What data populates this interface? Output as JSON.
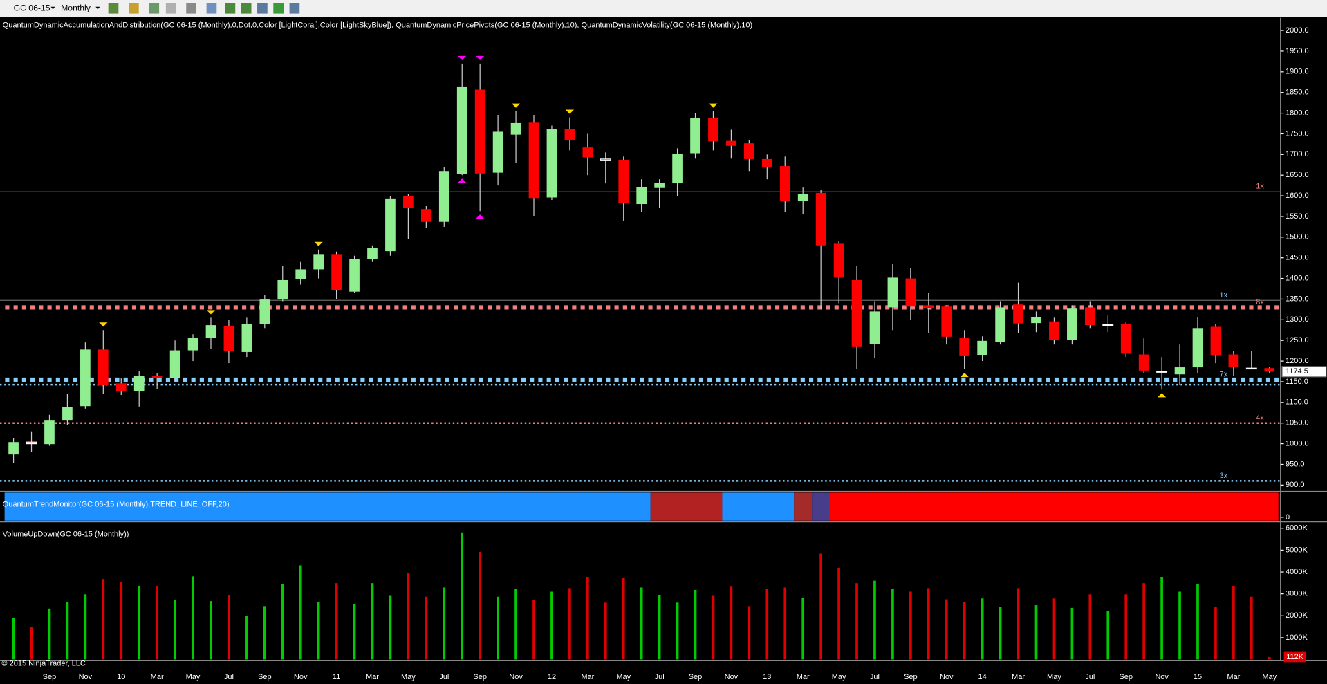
{
  "toolbar": {
    "instrument": "GC 06-15",
    "period": "Monthly"
  },
  "copyright": "© 2015 NinjaTrader, LLC",
  "chart_data": [
    {
      "type": "candlestick",
      "title": "QuantumDynamicAccumulationAndDistribution(GC 06-15 (Monthly),0,Dot,0,Color [LightCoral],Color [LightSkyBlue]), QuantumDynamicPricePivots(GC 06-15 (Monthly),10), QuantumDynamicVolatility(GC 06-15 (Monthly),10)",
      "open": [
        974,
        1004,
        999,
        1056,
        1091,
        1228,
        1146,
        1128,
        1165,
        1160,
        1226,
        1257,
        1285,
        1222,
        1290,
        1349,
        1398,
        1422,
        1459,
        1368,
        1447,
        1466,
        1600,
        1568,
        1537,
        1652,
        1857,
        1656,
        1748,
        1777,
        1596,
        1762,
        1717,
        1689,
        1687,
        1580,
        1619,
        1631,
        1703,
        1789,
        1733,
        1727,
        1689,
        1672,
        1588,
        1607,
        1484,
        1396,
        1242,
        1330,
        1400,
        1335,
        1332,
        1257,
        1214,
        1247,
        1337,
        1292,
        1296,
        1252,
        1330,
        1286,
        1289,
        1216,
        1174,
        1168,
        1185,
        1283,
        1216,
        1183,
        1183
      ],
      "high": [
        1013,
        1030,
        1070,
        1120,
        1245,
        1275,
        1160,
        1175,
        1170,
        1250,
        1265,
        1305,
        1300,
        1305,
        1360,
        1430,
        1440,
        1470,
        1465,
        1455,
        1480,
        1600,
        1605,
        1575,
        1670,
        1920,
        1920,
        1795,
        1805,
        1795,
        1770,
        1790,
        1750,
        1705,
        1695,
        1640,
        1640,
        1715,
        1800,
        1805,
        1760,
        1735,
        1700,
        1695,
        1620,
        1615,
        1490,
        1430,
        1345,
        1435,
        1425,
        1365,
        1335,
        1275,
        1260,
        1345,
        1390,
        1320,
        1305,
        1335,
        1345,
        1310,
        1295,
        1255,
        1210,
        1240,
        1307,
        1290,
        1225,
        1225,
        1185
      ],
      "low": [
        953,
        980,
        995,
        1045,
        1085,
        1120,
        1118,
        1090,
        1132,
        1150,
        1200,
        1230,
        1195,
        1210,
        1280,
        1345,
        1385,
        1400,
        1350,
        1365,
        1440,
        1455,
        1495,
        1522,
        1525,
        1650,
        1563,
        1625,
        1680,
        1550,
        1590,
        1710,
        1650,
        1630,
        1540,
        1560,
        1570,
        1600,
        1690,
        1710,
        1690,
        1660,
        1640,
        1560,
        1555,
        1325,
        1340,
        1180,
        1208,
        1275,
        1300,
        1268,
        1240,
        1180,
        1200,
        1240,
        1268,
        1270,
        1240,
        1240,
        1280,
        1270,
        1210,
        1170,
        1131,
        1143,
        1170,
        1195,
        1165,
        1180,
        1170
      ],
      "close": [
        1004,
        1000,
        1056,
        1089,
        1228,
        1142,
        1128,
        1164,
        1160,
        1226,
        1256,
        1287,
        1224,
        1290,
        1349,
        1396,
        1422,
        1459,
        1371,
        1447,
        1474,
        1592,
        1570,
        1537,
        1660,
        1863,
        1654,
        1755,
        1776,
        1593,
        1762,
        1734,
        1693,
        1685,
        1582,
        1621,
        1631,
        1701,
        1789,
        1732,
        1721,
        1689,
        1670,
        1588,
        1605,
        1480,
        1402,
        1234,
        1320,
        1402,
        1332,
        1328,
        1259,
        1212,
        1249,
        1330,
        1291,
        1306,
        1252,
        1327,
        1287,
        1288,
        1218,
        1177,
        1175,
        1185,
        1280,
        1213,
        1185,
        1182,
        1174.5
      ],
      "up_color": "#90ee90",
      "down_color": "#ff0000",
      "last_price": 1174.5,
      "ylim": [
        900,
        2000
      ],
      "yticks": [
        {
          "value": 900,
          "label": "900.0"
        },
        {
          "value": 950,
          "label": "950.0"
        },
        {
          "value": 1000,
          "label": "1000.0"
        },
        {
          "value": 1050,
          "label": "1050.0"
        },
        {
          "value": 1100,
          "label": "1100.0"
        },
        {
          "value": 1150,
          "label": "1150.0"
        },
        {
          "value": 1200,
          "label": "1200.0"
        },
        {
          "value": 1250,
          "label": "1250.0"
        },
        {
          "value": 1300,
          "label": "1300.0"
        },
        {
          "value": 1350,
          "label": "1350.0"
        },
        {
          "value": 1400,
          "label": "1400.0"
        },
        {
          "value": 1450,
          "label": "1450.0"
        },
        {
          "value": 1500,
          "label": "1500.0"
        },
        {
          "value": 1550,
          "label": "1550.0"
        },
        {
          "value": 1600,
          "label": "1600.0"
        },
        {
          "value": 1650,
          "label": "1650.0"
        },
        {
          "value": 1700,
          "label": "1700.0"
        },
        {
          "value": 1750,
          "label": "1750.0"
        },
        {
          "value": 1800,
          "label": "1800.0"
        },
        {
          "value": 1850,
          "label": "1850.0"
        },
        {
          "value": 1900,
          "label": "1900.0"
        },
        {
          "value": 1950,
          "label": "1950.0"
        },
        {
          "value": 2000,
          "label": "2000.0"
        }
      ],
      "pivots": [
        {
          "index": 5,
          "at": "high",
          "color": "#ffd700"
        },
        {
          "index": 11,
          "at": "high",
          "color": "#ffd700"
        },
        {
          "index": 17,
          "at": "high",
          "color": "#ffd700"
        },
        {
          "index": 25,
          "at": "high",
          "color": "#ff00ff"
        },
        {
          "index": 26,
          "at": "high",
          "color": "#ff00ff"
        },
        {
          "index": 25,
          "at": "low",
          "color": "#ff00ff"
        },
        {
          "index": 26,
          "at": "low",
          "color": "#ff00ff"
        },
        {
          "index": 28,
          "at": "high",
          "color": "#ffd700"
        },
        {
          "index": 31,
          "at": "high",
          "color": "#ffd700"
        },
        {
          "index": 39,
          "at": "high",
          "color": "#ffd700"
        },
        {
          "index": 53,
          "at": "low",
          "color": "#ffd700"
        },
        {
          "index": 64,
          "at": "low",
          "color": "#ffd700"
        }
      ],
      "levels": [
        {
          "value": 1610,
          "color": "#8b3a2a",
          "style": "line",
          "label": "1x",
          "label_color": "#f08080",
          "label_side": "right"
        },
        {
          "value": 1347,
          "color": "#666666",
          "style": "line",
          "label": "1x",
          "label_color": "#87cefa",
          "label_side": "left"
        },
        {
          "value": 1330,
          "color": "#f08080",
          "style": "square",
          "label": "8x",
          "label_color": "#f08080",
          "label_side": "right"
        },
        {
          "value": 1155,
          "color": "#87cefa",
          "style": "square",
          "label": "7x",
          "label_color": "#87cefa",
          "label_side": "left"
        },
        {
          "value": 1143,
          "color": "#87cefa",
          "style": "dot"
        },
        {
          "value": 1050,
          "color": "#f08080",
          "style": "dot",
          "label": "4x",
          "label_color": "#f08080",
          "label_side": "right"
        },
        {
          "value": 910,
          "color": "#87cefa",
          "style": "dot",
          "label": "3x",
          "label_color": "#87cefa",
          "label_side": "left"
        }
      ]
    },
    {
      "type": "band",
      "title": "QuantumTrendMonitor(GC 06-15 (Monthly),TREND_LINE_OFF,20)",
      "segments": [
        {
          "from": 0,
          "to": 35,
          "color": "#1e90ff"
        },
        {
          "from": 36,
          "to": 39,
          "color": "#b22222"
        },
        {
          "from": 40,
          "to": 43,
          "color": "#1e90ff"
        },
        {
          "from": 44,
          "to": 44,
          "color": "#a52a2a"
        },
        {
          "from": 45,
          "to": 45,
          "color": "#483d8b"
        },
        {
          "from": 46,
          "to": 70,
          "color": "#ff0000"
        }
      ],
      "yticks": [
        0
      ]
    },
    {
      "type": "volume",
      "title": "VolumeUpDown(GC 06-15 (Monthly))",
      "categories": [
        null,
        null,
        "Sep",
        null,
        "Nov",
        null,
        "10",
        null,
        "Mar",
        null,
        "May",
        null,
        "Jul",
        null,
        "Sep",
        null,
        "Nov",
        null,
        "11",
        null,
        "Mar",
        null,
        "May",
        null,
        "Jul",
        null,
        "Sep",
        null,
        "Nov",
        null,
        "12",
        null,
        "Mar",
        null,
        "May",
        null,
        "Jul",
        null,
        "Sep",
        null,
        "Nov",
        null,
        "13",
        null,
        "Mar",
        null,
        "May",
        null,
        "Jul",
        null,
        "Sep",
        null,
        "Nov",
        null,
        "14",
        null,
        "Mar",
        null,
        "May",
        null,
        "Jul",
        null,
        "Sep",
        null,
        "Nov",
        null,
        "15",
        null,
        "Mar",
        null,
        "May"
      ],
      "values": [
        1900,
        1470,
        2330,
        2640,
        2980,
        3680,
        3530,
        3370,
        3370,
        2710,
        3800,
        2670,
        2950,
        1980,
        2440,
        3450,
        4300,
        2640,
        3490,
        2520,
        3490,
        2910,
        3950,
        2870,
        3290,
        5810,
        4920,
        2870,
        3220,
        2710,
        3100,
        3260,
        3760,
        2600,
        3720,
        3290,
        2950,
        2600,
        3180,
        2910,
        3330,
        2440,
        3220,
        3290,
        2830,
        4840,
        4190,
        3490,
        3600,
        3220,
        3100,
        3260,
        2750,
        2640,
        2790,
        2400,
        3260,
        2480,
        2790,
        2360,
        2980,
        2210,
        2980,
        3490,
        3760,
        3100,
        3450,
        2400,
        3370,
        2870,
        112
      ],
      "last_value": {
        "value": 112,
        "label": "112K"
      },
      "up_color": "#00cc00",
      "down_color": "#e00000",
      "ylim": [
        0,
        6000
      ],
      "yticks": [
        {
          "value": 1000,
          "label": "1000K"
        },
        {
          "value": 2000,
          "label": "2000K"
        },
        {
          "value": 3000,
          "label": "3000K"
        },
        {
          "value": 4000,
          "label": "4000K"
        },
        {
          "value": 5000,
          "label": "5000K"
        },
        {
          "value": 6000,
          "label": "6000K"
        }
      ]
    }
  ]
}
